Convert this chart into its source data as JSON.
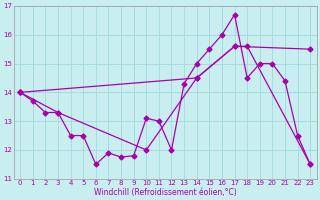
{
  "bg_color": "#c8eef0",
  "grid_color": "#a0d8dc",
  "line_color": "#aa00aa",
  "xlim": [
    -0.5,
    23.5
  ],
  "ylim": [
    11,
    17
  ],
  "xticks": [
    0,
    1,
    2,
    3,
    4,
    5,
    6,
    7,
    8,
    9,
    10,
    11,
    12,
    13,
    14,
    15,
    16,
    17,
    18,
    19,
    20,
    21,
    22,
    23
  ],
  "yticks": [
    11,
    12,
    13,
    14,
    15,
    16,
    17
  ],
  "xlabel": "Windchill (Refroidissement éolien,°C)",
  "line1_x": [
    0,
    1,
    2,
    3,
    4,
    5,
    6,
    7,
    8,
    9,
    10,
    11,
    12,
    13,
    14,
    15,
    16,
    17,
    18,
    19,
    20,
    21,
    22,
    23
  ],
  "line1_y": [
    14.0,
    13.7,
    13.3,
    13.3,
    12.5,
    12.5,
    11.5,
    11.9,
    11.75,
    11.8,
    13.1,
    13.0,
    12.0,
    14.3,
    15.0,
    15.5,
    16.0,
    16.7,
    14.5,
    15.0,
    15.0,
    14.4,
    12.5,
    11.5
  ],
  "line2_x": [
    0,
    3,
    10,
    14,
    17,
    18,
    23
  ],
  "line2_y": [
    14.0,
    13.3,
    12.0,
    14.5,
    15.6,
    15.6,
    11.5
  ],
  "line3_x": [
    0,
    14,
    17,
    23
  ],
  "line3_y": [
    14.0,
    14.5,
    15.6,
    15.5
  ],
  "tick_fontsize": 5,
  "xlabel_fontsize": 5.5
}
